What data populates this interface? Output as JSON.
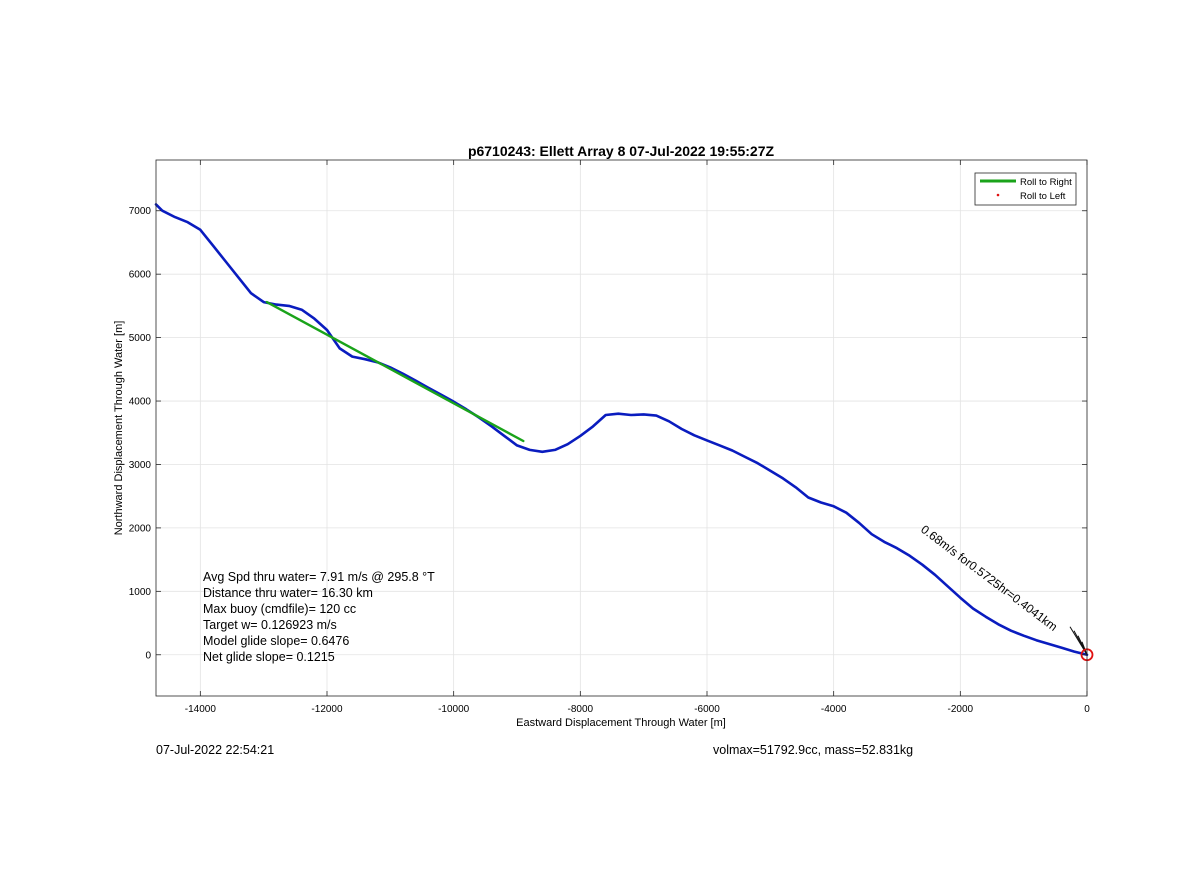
{
  "chart_data": {
    "type": "line",
    "title": "p6710243: Ellett Array 8 07-Jul-2022 19:55:27Z",
    "xlabel": "Eastward Displacement Through Water [m]",
    "ylabel": "Northward Displacement Through Water [m]",
    "xlim": [
      -14700,
      0
    ],
    "ylim": [
      -650,
      7800
    ],
    "x_ticks": [
      -14000,
      -12000,
      -10000,
      -8000,
      -6000,
      -4000,
      -2000,
      0
    ],
    "x_tick_labels": [
      "-14000",
      "-12000",
      "-10000",
      "-8000",
      "-6000",
      "-4000",
      "-2000",
      "0"
    ],
    "y_ticks": [
      0,
      1000,
      2000,
      3000,
      4000,
      5000,
      6000,
      7000
    ],
    "y_tick_labels": [
      "0",
      "1000",
      "2000",
      "3000",
      "4000",
      "5000",
      "6000",
      "7000"
    ],
    "grid": true,
    "legend_location": "top-right",
    "legend": [
      {
        "label": "Roll to Right",
        "color": "#1aa31a",
        "style": "line"
      },
      {
        "label": "Roll to Left",
        "color": "#e01010",
        "style": "dot"
      }
    ],
    "series": [
      {
        "color": "#0a1cbf",
        "x": [
          -14700,
          -14600,
          -14400,
          -14200,
          -14000,
          -13800,
          -13600,
          -13400,
          -13200,
          -13000,
          -12800,
          -12600,
          -12400,
          -12200,
          -12000,
          -11800,
          -11600,
          -11400,
          -11200,
          -11000,
          -10800,
          -10600,
          -10400,
          -10200,
          -10000,
          -9800,
          -9600,
          -9400,
          -9200,
          -9000,
          -8800,
          -8600,
          -8400,
          -8200,
          -8000,
          -7800,
          -7600,
          -7400,
          -7200,
          -7000,
          -6800,
          -6600,
          -6400,
          -6200,
          -6000,
          -5800,
          -5600,
          -5400,
          -5200,
          -5000,
          -4800,
          -4600,
          -4400,
          -4200,
          -4000,
          -3800,
          -3600,
          -3400,
          -3200,
          -3000,
          -2800,
          -2600,
          -2400,
          -2200,
          -2000,
          -1800,
          -1600,
          -1400,
          -1200,
          -1000,
          -800,
          -600,
          -400,
          -200,
          0
        ],
        "y": [
          7100,
          7000,
          6900,
          6820,
          6700,
          6450,
          6200,
          5950,
          5700,
          5560,
          5520,
          5500,
          5440,
          5300,
          5120,
          4830,
          4700,
          4660,
          4610,
          4530,
          4430,
          4320,
          4210,
          4100,
          3990,
          3870,
          3740,
          3600,
          3450,
          3300,
          3230,
          3200,
          3230,
          3320,
          3450,
          3600,
          3780,
          3800,
          3780,
          3790,
          3770,
          3680,
          3560,
          3460,
          3380,
          3300,
          3220,
          3120,
          3020,
          2900,
          2780,
          2640,
          2480,
          2400,
          2340,
          2240,
          2080,
          1900,
          1780,
          1680,
          1560,
          1420,
          1260,
          1080,
          900,
          730,
          600,
          480,
          380,
          300,
          230,
          170,
          110,
          50,
          0
        ]
      },
      {
        "color": "#1aa31a",
        "x": [
          -12950,
          -8900
        ],
        "y": [
          5560,
          3370
        ]
      }
    ],
    "annotations": [
      {
        "text": "Avg Spd thru water=  7.91 m/s @ 295.8 °T"
      },
      {
        "text": "Distance thru water= 16.30 km"
      },
      {
        "text": "Max buoy (cmdfile)= 120 cc"
      },
      {
        "text": "Target w= 0.126923 m/s"
      },
      {
        "text": "Model glide slope= 0.6476"
      },
      {
        "text": "Net glide slope= 0.1215"
      }
    ],
    "current_label": "0.68m/s for0.5725hr=0.4041km",
    "end_marker": {
      "x": 0,
      "y": 0,
      "color": "#e01010"
    }
  },
  "footer": {
    "left": "07-Jul-2022 22:54:21",
    "right": "volmax=51792.9cc, mass=52.831kg"
  }
}
